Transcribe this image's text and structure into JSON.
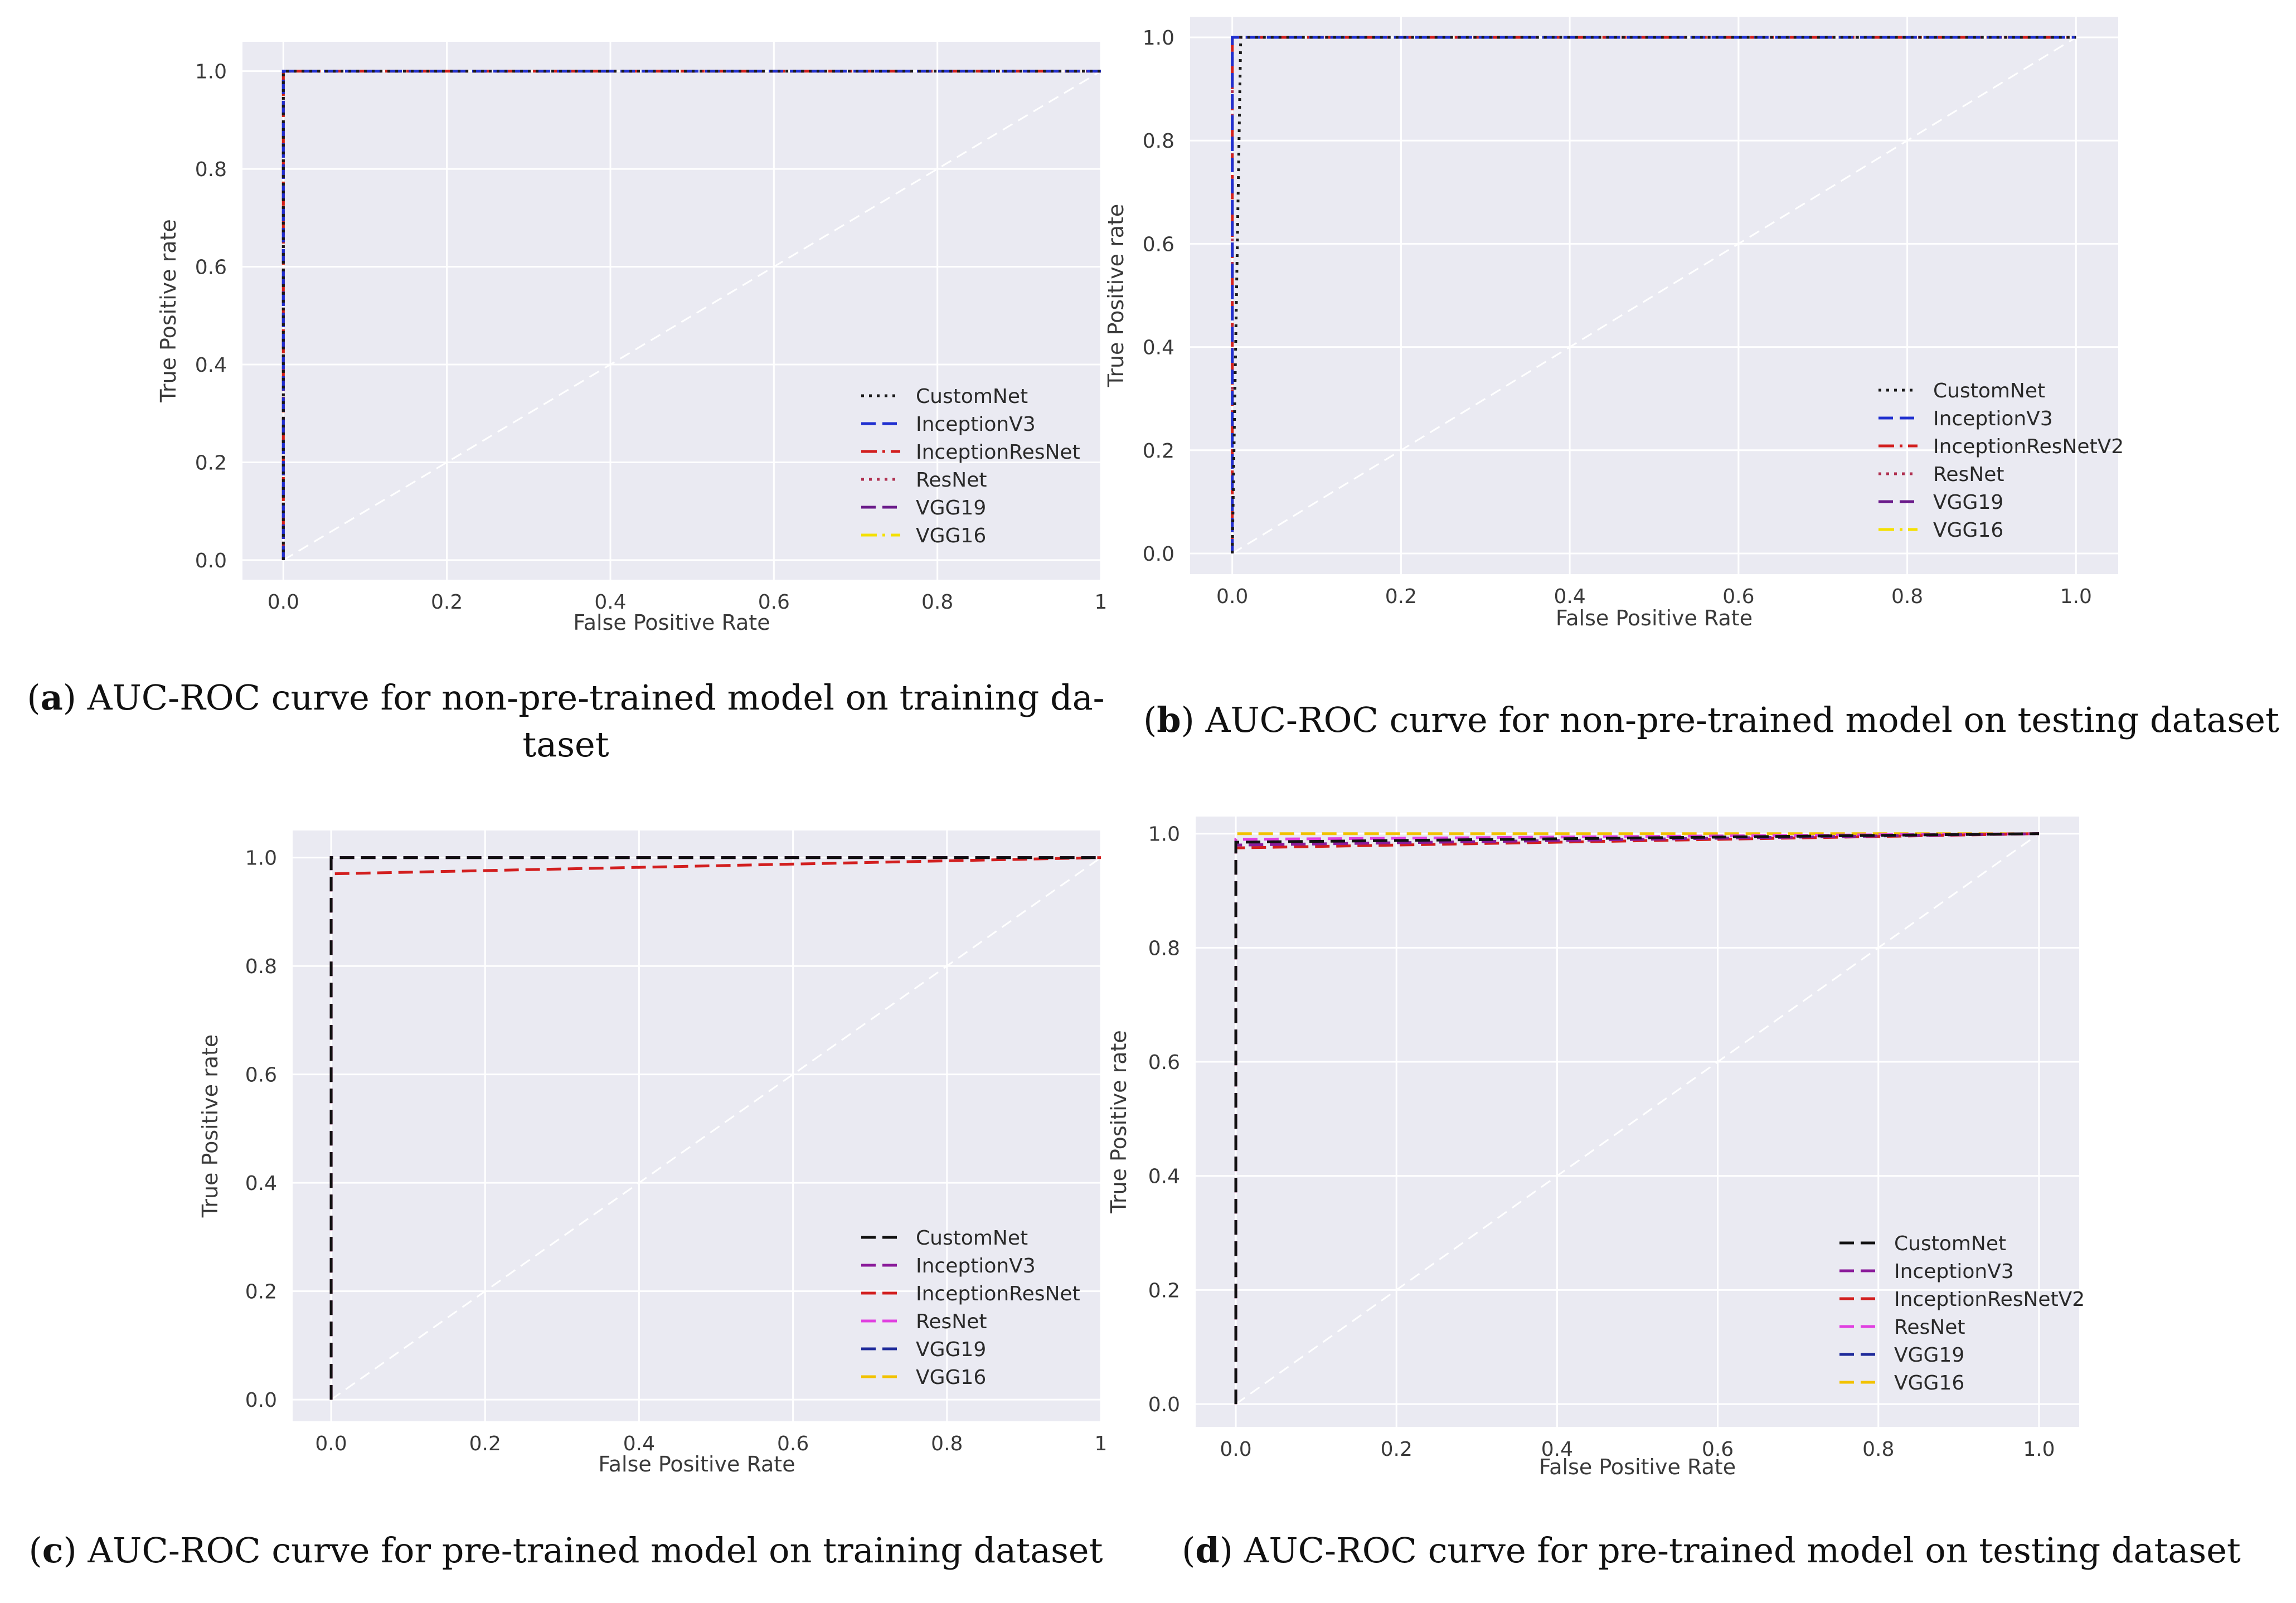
{
  "chart_data": [
    {
      "id": "a",
      "type": "line",
      "caption_letter": "a",
      "caption_text": "AUC-ROC curve for non-pre-trained model on training dataset",
      "caption_display": [
        "AUC-ROC curve for non-pre-trained model on training da-",
        "taset"
      ],
      "xlabel": "False Positive Rate",
      "ylabel": "True Positive rate",
      "xlim": [
        -0.05,
        1.0
      ],
      "ylim": [
        -0.04,
        1.06
      ],
      "xticks": [
        "0.0",
        "0.2",
        "0.4",
        "0.6",
        "0.8",
        "1"
      ],
      "yticks": [
        "0.0",
        "0.2",
        "0.4",
        "0.6",
        "0.8",
        "1.0"
      ],
      "legend_position": "lower-right",
      "series": [
        {
          "name": "CustomNet",
          "color": "#1a1a1a",
          "dash": "dotted",
          "x": [
            0,
            0,
            1
          ],
          "y": [
            0,
            1,
            1
          ]
        },
        {
          "name": "InceptionV3",
          "color": "#2030d0",
          "dash": "dashed",
          "x": [
            0,
            0,
            1
          ],
          "y": [
            0,
            1,
            1
          ]
        },
        {
          "name": "InceptionResNet",
          "color": "#d21f1f",
          "dash": "dashdot",
          "x": [
            0,
            0,
            1
          ],
          "y": [
            0,
            1,
            1
          ]
        },
        {
          "name": "ResNet",
          "color": "#b03050",
          "dash": "dotted",
          "x": [
            0,
            0,
            1
          ],
          "y": [
            0,
            1,
            1
          ]
        },
        {
          "name": "VGG19",
          "color": "#6a1b8a",
          "dash": "dashed",
          "x": [
            0,
            0,
            1
          ],
          "y": [
            0,
            1,
            1
          ]
        },
        {
          "name": "VGG16",
          "color": "#f4e000",
          "dash": "dashdot",
          "x": [
            0,
            0,
            1
          ],
          "y": [
            0,
            1,
            1
          ]
        }
      ]
    },
    {
      "id": "b",
      "type": "line",
      "caption_letter": "b",
      "caption_text": "AUC-ROC curve for non-pre-trained model on testing dataset",
      "caption_display": [
        "AUC-ROC curve for non-pre-trained model on testing dataset"
      ],
      "xlabel": "False Positive Rate",
      "ylabel": "True Positive rate",
      "xlim": [
        -0.05,
        1.05
      ],
      "ylim": [
        -0.04,
        1.04
      ],
      "xticks": [
        "0.0",
        "0.2",
        "0.4",
        "0.6",
        "0.8",
        "1.0"
      ],
      "yticks": [
        "0.0",
        "0.2",
        "0.4",
        "0.6",
        "0.8",
        "1.0"
      ],
      "legend_position": "lower-right",
      "series": [
        {
          "name": "CustomNet",
          "color": "#1a1a1a",
          "dash": "dotted",
          "x": [
            0,
            0.01,
            1
          ],
          "y": [
            0,
            1,
            1
          ]
        },
        {
          "name": "InceptionV3",
          "color": "#2030d0",
          "dash": "dashed",
          "x": [
            0,
            0,
            1
          ],
          "y": [
            0,
            1,
            1
          ]
        },
        {
          "name": "InceptionResNetV2",
          "color": "#d21f1f",
          "dash": "dashdot",
          "x": [
            0,
            0,
            1
          ],
          "y": [
            0,
            1,
            1
          ]
        },
        {
          "name": "ResNet",
          "color": "#b03050",
          "dash": "dotted",
          "x": [
            0,
            0,
            1
          ],
          "y": [
            0,
            1,
            1
          ]
        },
        {
          "name": "VGG19",
          "color": "#6a1b8a",
          "dash": "dashed",
          "x": [
            0,
            0,
            1
          ],
          "y": [
            0,
            1,
            1
          ]
        },
        {
          "name": "VGG16",
          "color": "#f4e000",
          "dash": "dashdot",
          "x": [
            0,
            0,
            1
          ],
          "y": [
            0,
            1,
            1
          ]
        }
      ]
    },
    {
      "id": "c",
      "type": "line",
      "caption_letter": "c",
      "caption_text": "AUC-ROC curve for pre-trained model on training dataset",
      "caption_display": [
        "AUC-ROC curve for pre-trained model on training dataset"
      ],
      "xlabel": "False Positive Rate",
      "ylabel": "True Positive rate",
      "xlim": [
        -0.05,
        1.0
      ],
      "ylim": [
        -0.04,
        1.05
      ],
      "xticks": [
        "0.0",
        "0.2",
        "0.4",
        "0.6",
        "0.8",
        "1"
      ],
      "yticks": [
        "0.0",
        "0.2",
        "0.4",
        "0.6",
        "0.8",
        "1.0"
      ],
      "legend_position": "lower-right",
      "series": [
        {
          "name": "CustomNet",
          "color": "#111111",
          "dash": "dashed",
          "x": [
            0,
            0,
            1
          ],
          "y": [
            0,
            1,
            1
          ]
        },
        {
          "name": "InceptionV3",
          "color": "#8a1a9a",
          "dash": "dashed",
          "x": [
            0,
            0,
            1
          ],
          "y": [
            0,
            1,
            1
          ]
        },
        {
          "name": "InceptionResNet",
          "color": "#d21f1f",
          "dash": "dashed",
          "x": [
            0,
            0,
            0.5,
            1
          ],
          "y": [
            0,
            0.97,
            0.985,
            1
          ]
        },
        {
          "name": "ResNet",
          "color": "#e040e0",
          "dash": "dashed",
          "x": [
            0,
            0,
            1
          ],
          "y": [
            0,
            1,
            1
          ]
        },
        {
          "name": "VGG19",
          "color": "#1e2a9a",
          "dash": "dashed",
          "x": [
            0,
            0,
            1
          ],
          "y": [
            0,
            1,
            1
          ]
        },
        {
          "name": "VGG16",
          "color": "#f2c200",
          "dash": "dashed",
          "x": [
            0,
            0,
            1
          ],
          "y": [
            0,
            1,
            1
          ]
        }
      ]
    },
    {
      "id": "d",
      "type": "line",
      "caption_letter": "d",
      "caption_text": "AUC-ROC curve for pre-trained model on testing dataset",
      "caption_display": [
        "AUC-ROC curve for pre-trained model on testing dataset"
      ],
      "xlabel": "False Positive Rate",
      "ylabel": "True Positive rate",
      "xlim": [
        -0.05,
        1.05
      ],
      "ylim": [
        -0.04,
        1.03
      ],
      "xticks": [
        "0.0",
        "0.2",
        "0.4",
        "0.6",
        "0.8",
        "1.0"
      ],
      "yticks": [
        "0.0",
        "0.2",
        "0.4",
        "0.6",
        "0.8",
        "1.0"
      ],
      "legend_position": "lower-right",
      "series": [
        {
          "name": "CustomNet",
          "color": "#111111",
          "dash": "dashed",
          "x": [
            0,
            0,
            1
          ],
          "y": [
            0,
            0.985,
            1
          ]
        },
        {
          "name": "InceptionV3",
          "color": "#8a1a9a",
          "dash": "dashed",
          "x": [
            0,
            0,
            1
          ],
          "y": [
            0,
            0.98,
            1
          ]
        },
        {
          "name": "InceptionResNetV2",
          "color": "#d21f1f",
          "dash": "dashed",
          "x": [
            0,
            0,
            1
          ],
          "y": [
            0,
            0.975,
            1
          ]
        },
        {
          "name": "ResNet",
          "color": "#e040e0",
          "dash": "dashed",
          "x": [
            0,
            0,
            1
          ],
          "y": [
            0,
            0.99,
            1
          ]
        },
        {
          "name": "VGG19",
          "color": "#1e2a9a",
          "dash": "dashed",
          "x": [
            0,
            0,
            1
          ],
          "y": [
            0,
            0.98,
            1
          ]
        },
        {
          "name": "VGG16",
          "color": "#f2c200",
          "dash": "dashed",
          "x": [
            0,
            0,
            1
          ],
          "y": [
            0,
            1,
            1
          ]
        }
      ]
    }
  ]
}
